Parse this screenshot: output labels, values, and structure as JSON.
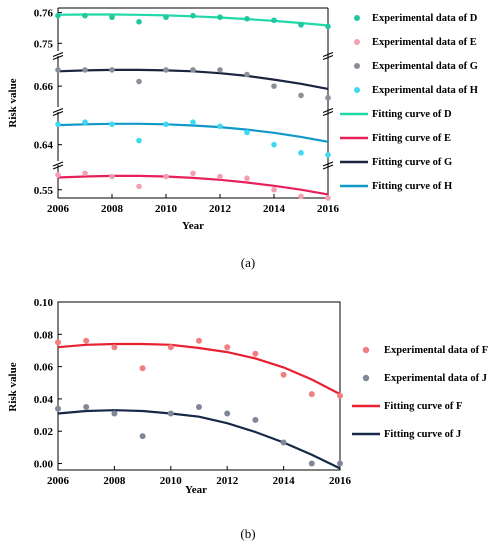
{
  "chart_data": [
    {
      "type": "scatter",
      "panel_label": "(a)",
      "xlabel": "Year",
      "ylabel": "Risk value",
      "xlim": [
        2006,
        2016
      ],
      "x_ticks": [
        "2006",
        "2008",
        "2010",
        "2012",
        "2014",
        "2016"
      ],
      "broken_y_axis": true,
      "y_segments": [
        {
          "range": [
            0.5475,
            0.5575
          ],
          "ticks": [
            "0.55"
          ]
        },
        {
          "range": [
            0.636,
            0.648
          ],
          "ticks": [
            "0.64"
          ]
        },
        {
          "range": [
            0.6555,
            0.6665
          ],
          "ticks": [
            "0.66"
          ]
        },
        {
          "range": [
            0.7475,
            0.7615
          ],
          "ticks": [
            "0.75",
            "0.76"
          ]
        }
      ],
      "legend_position": "right",
      "x": [
        2006,
        2007,
        2008,
        2009,
        2010,
        2011,
        2012,
        2013,
        2014,
        2015,
        2016
      ],
      "series": [
        {
          "name": "Experimental data of D",
          "kind": "points",
          "color": "#20c8a0",
          "values": [
            0.759,
            0.759,
            0.7585,
            0.757,
            0.7585,
            0.759,
            0.7585,
            0.758,
            0.7575,
            0.756,
            0.7555
          ]
        },
        {
          "name": "Experimental data of E",
          "kind": "points",
          "color": "#f4a0b0",
          "values": [
            0.5545,
            0.555,
            0.554,
            0.551,
            0.554,
            0.555,
            0.554,
            0.5535,
            0.55,
            0.548,
            0.5475
          ]
        },
        {
          "name": "Experimental data of G",
          "kind": "points",
          "color": "#8a8f9a",
          "values": [
            0.6635,
            0.6635,
            0.6635,
            0.661,
            0.6635,
            0.6635,
            0.6635,
            0.6625,
            0.66,
            0.658,
            0.6575
          ]
        },
        {
          "name": "Experimental data of H",
          "kind": "points",
          "color": "#40d8f0",
          "values": [
            0.645,
            0.6455,
            0.645,
            0.641,
            0.645,
            0.6455,
            0.6445,
            0.643,
            0.64,
            0.638,
            0.6375
          ]
        },
        {
          "name": "Fitting curve of D",
          "kind": "line",
          "color": "#20d8a8",
          "values": [
            0.7593,
            0.7594,
            0.7594,
            0.7593,
            0.7591,
            0.7588,
            0.7584,
            0.7579,
            0.7573,
            0.7566,
            0.7558
          ]
        },
        {
          "name": "Fitting curve of E",
          "kind": "line",
          "color": "#e8205a",
          "values": [
            0.5537,
            0.554,
            0.5542,
            0.5542,
            0.554,
            0.5536,
            0.553,
            0.5522,
            0.5512,
            0.55,
            0.5486
          ]
        },
        {
          "name": "Fitting curve of G",
          "kind": "line",
          "color": "#1a2540",
          "values": [
            0.6632,
            0.6634,
            0.6635,
            0.6635,
            0.6634,
            0.6632,
            0.6628,
            0.6622,
            0.6614,
            0.6605,
            0.6594
          ]
        },
        {
          "name": "Fitting curve of H",
          "kind": "line",
          "color": "#1098c8",
          "values": [
            0.6448,
            0.645,
            0.6451,
            0.6451,
            0.645,
            0.6447,
            0.6443,
            0.6437,
            0.6429,
            0.6419,
            0.6407
          ]
        }
      ]
    },
    {
      "type": "scatter",
      "panel_label": "(b)",
      "xlabel": "Year",
      "ylabel": "Risk value",
      "xlim": [
        2006,
        2016
      ],
      "ylim": [
        -0.004,
        0.1
      ],
      "x_ticks": [
        "2006",
        "2008",
        "2010",
        "2012",
        "2014",
        "2016"
      ],
      "y_ticks": [
        "0.00",
        "0.02",
        "0.04",
        "0.06",
        "0.08",
        "0.10"
      ],
      "legend_position": "right",
      "x": [
        2006,
        2007,
        2008,
        2009,
        2010,
        2011,
        2012,
        2013,
        2014,
        2015,
        2016
      ],
      "series": [
        {
          "name": "Experimental data of F",
          "kind": "points",
          "color": "#f08080",
          "values": [
            0.075,
            0.076,
            0.072,
            0.059,
            0.072,
            0.076,
            0.072,
            0.068,
            0.055,
            0.043,
            0.042
          ]
        },
        {
          "name": "Experimental data of J",
          "kind": "points",
          "color": "#808898",
          "values": [
            0.034,
            0.035,
            0.031,
            0.017,
            0.031,
            0.035,
            0.031,
            0.027,
            0.013,
            0.0,
            0.0
          ]
        },
        {
          "name": "Fitting curve of F",
          "kind": "line",
          "color": "#e82030",
          "values": [
            0.072,
            0.0735,
            0.074,
            0.074,
            0.0735,
            0.0715,
            0.069,
            0.065,
            0.0595,
            0.052,
            0.043
          ]
        },
        {
          "name": "Fitting curve of J",
          "kind": "line",
          "color": "#182848",
          "values": [
            0.031,
            0.0325,
            0.033,
            0.0325,
            0.031,
            0.029,
            0.025,
            0.0195,
            0.013,
            0.0055,
            -0.003
          ]
        }
      ]
    }
  ]
}
